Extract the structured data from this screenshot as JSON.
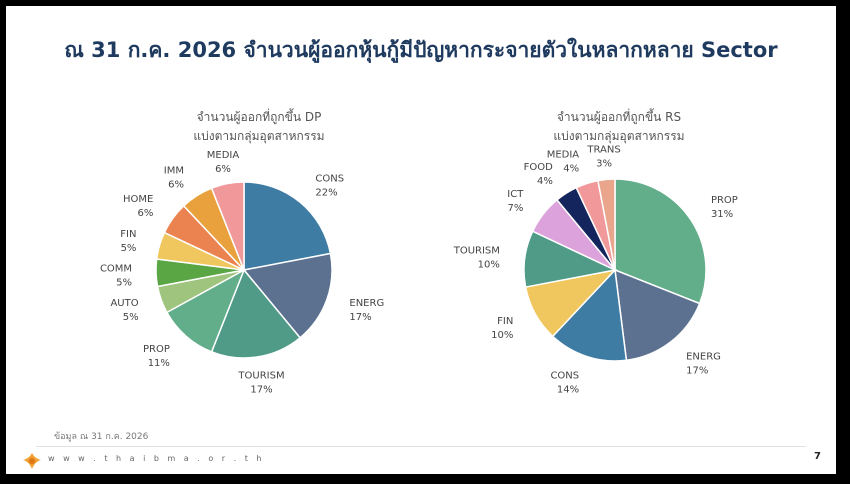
{
  "title": "ณ 31 ก.ค. 2026 จำนวนผู้ออกหุ้นกู้มีปัญหากระจายตัวในหลากหลาย Sector",
  "source_note": "ข้อมูล ณ 31 ก.ค. 2026",
  "website": "w w w . t h a i b m a . o r . t h",
  "page_number": "7",
  "chart_data": [
    {
      "type": "pie",
      "title_line1": "จำนวนผู้ออกที่ถูกขึ้น DP",
      "title_line2": "แบ่งตามกลุ่มอุตสาหกรรม",
      "slices": [
        {
          "label": "CONS",
          "value": 22,
          "pct": "22%",
          "color": "#3e7ca3"
        },
        {
          "label": "ENERG",
          "value": 17,
          "pct": "17%",
          "color": "#5c7190"
        },
        {
          "label": "TOURISM",
          "value": 17,
          "pct": "17%",
          "color": "#4f9b87"
        },
        {
          "label": "PROP",
          "value": 11,
          "pct": "11%",
          "color": "#62ad8a"
        },
        {
          "label": "AUTO",
          "value": 5,
          "pct": "5%",
          "color": "#9fc47e"
        },
        {
          "label": "COMM",
          "value": 5,
          "pct": "5%",
          "color": "#5aa645"
        },
        {
          "label": "FIN",
          "value": 5,
          "pct": "5%",
          "color": "#efc75e"
        },
        {
          "label": "HOME",
          "value": 6,
          "pct": "6%",
          "color": "#ea8350"
        },
        {
          "label": "IMM",
          "value": 6,
          "pct": "6%",
          "color": "#e9a13d"
        },
        {
          "label": "MEDIA",
          "value": 6,
          "pct": "6%",
          "color": "#f0989a"
        }
      ]
    },
    {
      "type": "pie",
      "title_line1": "จำนวนผู้ออกที่ถูกขึ้น RS",
      "title_line2": "แบ่งตามกลุ่มอุตสาหกรรม",
      "slices": [
        {
          "label": "PROP",
          "value": 31,
          "pct": "31%",
          "color": "#62ad8a"
        },
        {
          "label": "ENERG",
          "value": 17,
          "pct": "17%",
          "color": "#5c7190"
        },
        {
          "label": "CONS",
          "value": 14,
          "pct": "14%",
          "color": "#3e7ca3"
        },
        {
          "label": "FIN",
          "value": 10,
          "pct": "10%",
          "color": "#efc75e"
        },
        {
          "label": "TOURISM",
          "value": 10,
          "pct": "10%",
          "color": "#4f9b87"
        },
        {
          "label": "ICT",
          "value": 7,
          "pct": "7%",
          "color": "#dca2dc"
        },
        {
          "label": "FOOD",
          "value": 4,
          "pct": "4%",
          "color": "#14245c"
        },
        {
          "label": "MEDIA",
          "value": 4,
          "pct": "4%",
          "color": "#f0989a"
        },
        {
          "label": "TRANS",
          "value": 3,
          "pct": "3%",
          "color": "#eaa68c"
        }
      ]
    }
  ]
}
